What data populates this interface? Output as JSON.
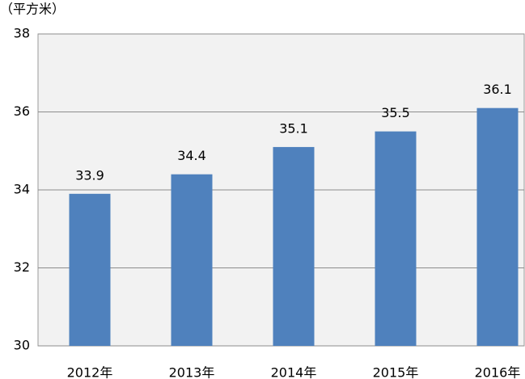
{
  "chart_data": {
    "type": "bar",
    "ylabel": "（平方米）",
    "categories": [
      "2012年",
      "2013年",
      "2014年",
      "2015年",
      "2016年"
    ],
    "values": [
      33.9,
      34.4,
      35.1,
      35.5,
      36.1
    ],
    "color": "#4f81bd",
    "ylim": [
      30,
      38
    ],
    "yticks": [
      30,
      32,
      34,
      36,
      38
    ],
    "grid": true
  }
}
